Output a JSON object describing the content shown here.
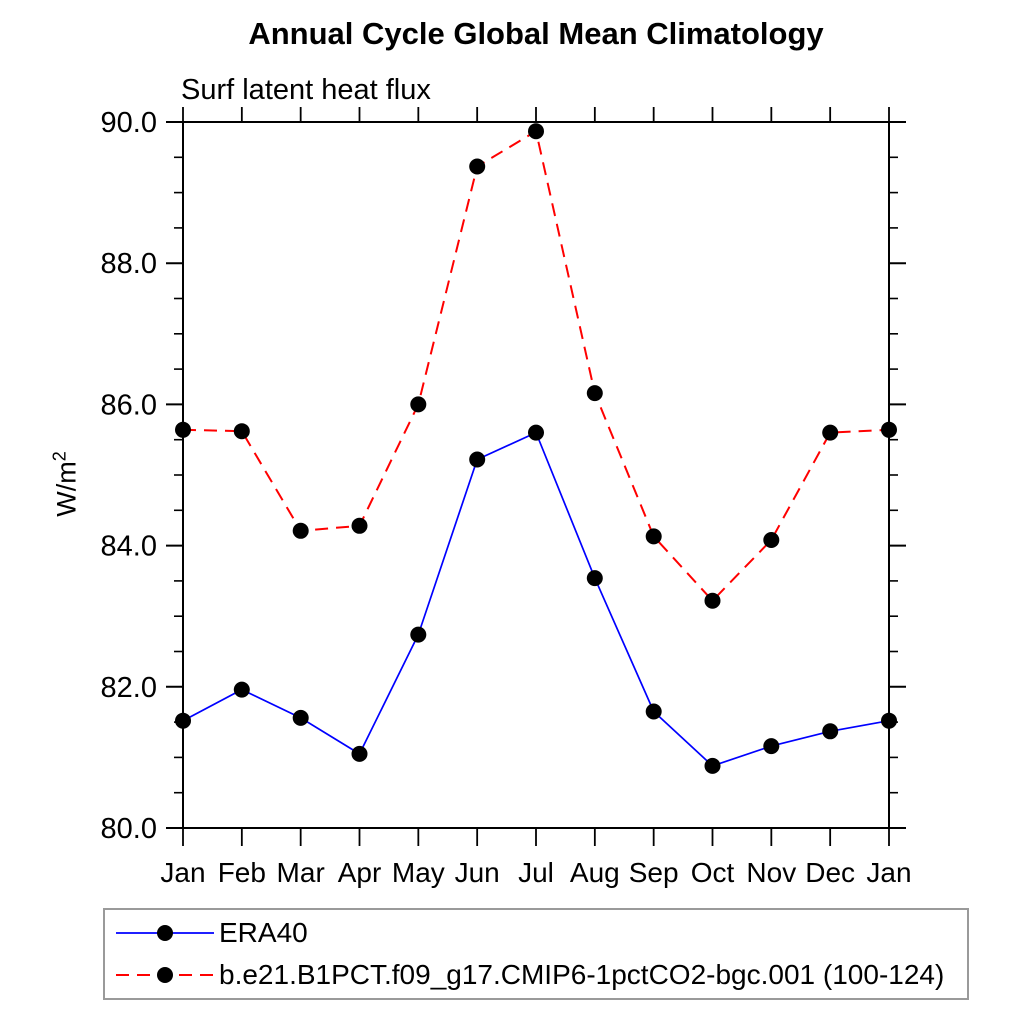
{
  "chart_data": {
    "type": "line",
    "title": "Annual Cycle Global Mean Climatology",
    "subtitle": "Surf latent heat flux",
    "ylabel": {
      "base": "W/m",
      "superscript": "2"
    },
    "xlabel": "",
    "categories": [
      "Jan",
      "Feb",
      "Mar",
      "Apr",
      "May",
      "Jun",
      "Jul",
      "Aug",
      "Sep",
      "Oct",
      "Nov",
      "Dec",
      "Jan"
    ],
    "ylim": [
      80.0,
      90.0
    ],
    "yticks": {
      "major_values": [
        80,
        82,
        84,
        86,
        88,
        90
      ],
      "major_labels": [
        "80.0",
        "82.0",
        "84.0",
        "86.0",
        "88.0",
        "90.0"
      ],
      "minor_step": 0.5
    },
    "grid": false,
    "legend_position": "bottom-left-box",
    "axis_color": "#000000",
    "marker": {
      "shape": "circle",
      "color": "#000000"
    },
    "series": [
      {
        "name": "ERA40",
        "color": "#0000ff",
        "line_style": "solid",
        "values": [
          81.52,
          81.96,
          81.56,
          81.05,
          82.74,
          85.22,
          85.6,
          83.54,
          81.65,
          80.88,
          81.16,
          81.37,
          81.52
        ]
      },
      {
        "name": "b.e21.B1PCT.f09_g17.CMIP6-1pctCO2-bgc.001 (100-124)",
        "color": "#ff0000",
        "line_style": "dashed",
        "values": [
          85.64,
          85.62,
          84.21,
          84.28,
          86.0,
          89.37,
          89.87,
          86.16,
          84.13,
          83.22,
          84.08,
          85.6,
          85.64
        ]
      }
    ]
  }
}
